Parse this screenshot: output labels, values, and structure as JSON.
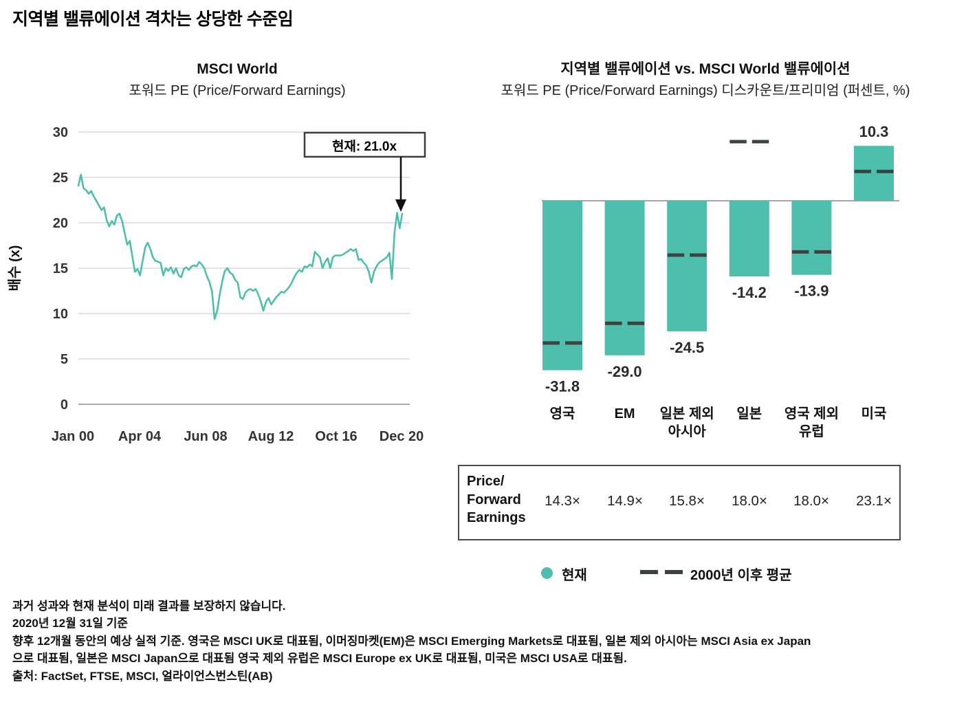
{
  "header": {
    "title": "지역별 밸류에이션 격차는 상당한 수준임"
  },
  "colors": {
    "teal": "#4DBFAC",
    "avg_dash": "#3C4441",
    "grid": "#D9D9D9",
    "baseline": "#ABABAB",
    "zero_line": "#A6A6A6",
    "tick_text": "#333333",
    "value_text": "#2B2B2B",
    "annotation_border": "#3E3E3E"
  },
  "chart_data": [
    {
      "type": "line",
      "title": "MSCI World",
      "subtitle": "포워드 PE (Price/Forward Earnings)",
      "ylabel": "배수 (x)",
      "ylim": [
        0,
        30
      ],
      "yticks": [
        0,
        5,
        10,
        15,
        20,
        25,
        30
      ],
      "xtick_labels": [
        "Jan 00",
        "Apr 04",
        "Jun 08",
        "Aug 12",
        "Oct 16",
        "Dec 20"
      ],
      "x_range": [
        "Jan 2000",
        "Dec 2020"
      ],
      "grid": true,
      "annotation": {
        "label": "현재: 21.0x",
        "value": 21.0
      },
      "series": [
        {
          "name": "MSCI World 포워드 PE",
          "values": [
            24.1,
            25.3,
            23.8,
            23.6,
            23.2,
            23.5,
            22.9,
            22.4,
            21.9,
            21.4,
            21.7,
            20.3,
            19.6,
            20.2,
            19.8,
            20.8,
            21.0,
            20.2,
            18.9,
            17.6,
            18.0,
            16.3,
            14.6,
            14.9,
            14.2,
            15.8,
            17.3,
            17.8,
            17.1,
            16.2,
            15.8,
            15.7,
            15.6,
            14.2,
            15.0,
            14.7,
            15.1,
            14.4,
            15.0,
            14.2,
            14.0,
            14.9,
            15.1,
            14.8,
            15.2,
            15.3,
            15.2,
            15.7,
            15.4,
            15.0,
            14.1,
            13.5,
            12.4,
            9.4,
            10.3,
            12.1,
            13.6,
            14.7,
            15.0,
            14.5,
            14.3,
            13.7,
            13.4,
            11.8,
            11.6,
            12.3,
            12.6,
            12.7,
            12.5,
            12.7,
            12.1,
            11.3,
            10.3,
            11.3,
            11.7,
            11.0,
            11.4,
            11.8,
            12.1,
            12.4,
            12.3,
            12.6,
            12.9,
            13.4,
            14.0,
            14.5,
            14.8,
            14.6,
            15.2,
            15.1,
            15.4,
            15.2,
            16.8,
            16.5,
            16.2,
            15.0,
            15.7,
            16.1,
            15.0,
            16.2,
            16.4,
            16.4,
            16.4,
            16.5,
            16.7,
            16.9,
            17.1,
            16.9,
            17.1,
            15.9,
            16.0,
            15.6,
            15.3,
            14.6,
            13.4,
            14.6,
            15.2,
            15.6,
            15.8,
            16.0,
            16.2,
            16.7,
            13.8,
            18.9,
            21.1,
            19.4,
            21.0
          ]
        }
      ]
    },
    {
      "type": "bar",
      "title": "지역별 밸류에이션 vs. MSCI World 밸류에이션",
      "subtitle": "포워드 PE (Price/Forward Earnings) 디스카운트/프리미엄 (퍼센트, %)",
      "categories": [
        "영국",
        "EM",
        "일본 제외 아시아",
        "일본",
        "영국 제외 유럽",
        "미국"
      ],
      "category_lines": [
        [
          "영국"
        ],
        [
          "EM"
        ],
        [
          "일본 제외",
          "아시아"
        ],
        [
          "일본"
        ],
        [
          "영국 제외",
          "유럽"
        ],
        [
          "미국"
        ]
      ],
      "series": [
        {
          "name": "현재",
          "values": [
            -31.8,
            -29.0,
            -24.5,
            -14.2,
            -13.9,
            10.3
          ]
        },
        {
          "name": "2000년 이후 평균",
          "values": [
            -26.7,
            -23.0,
            -10.2,
            11.1,
            -9.6,
            5.5
          ]
        }
      ],
      "value_labels": [
        "-31.8",
        "-29.0",
        "-24.5",
        "-14.2",
        "-13.9",
        "10.3"
      ],
      "ylim": [
        -35,
        14
      ],
      "grid": false,
      "legend_position": "bottom"
    }
  ],
  "pe_table": {
    "row_label_lines": [
      "Price/",
      "Forward",
      "Earnings"
    ],
    "values": [
      "14.3×",
      "14.9×",
      "15.8×",
      "18.0×",
      "18.0×",
      "23.1×"
    ]
  },
  "legend": {
    "current_label": "현재",
    "average_label": "2000년 이후 평균"
  },
  "footnotes": [
    "과거 성과와 현재 분석이 미래 결과를 보장하지 않습니다.",
    "2020년 12월 31일 기준",
    "향후 12개월 동안의 예상 실적 기준. 영국은 MSCI UK로 대표됨, 이머징마켓(EM)은 MSCI Emerging Markets로 대표됨, 일본 제외 아시아는 MSCI Asia ex Japan",
    "으로 대표됨, 일본은 MSCI Japan으로 대표됨 영국 제외 유럽은 MSCI Europe ex UK로 대표됨, 미국은 MSCI USA로 대표됨.",
    "출처: FactSet, FTSE, MSCI, 얼라이언스번스틴(AB)"
  ]
}
